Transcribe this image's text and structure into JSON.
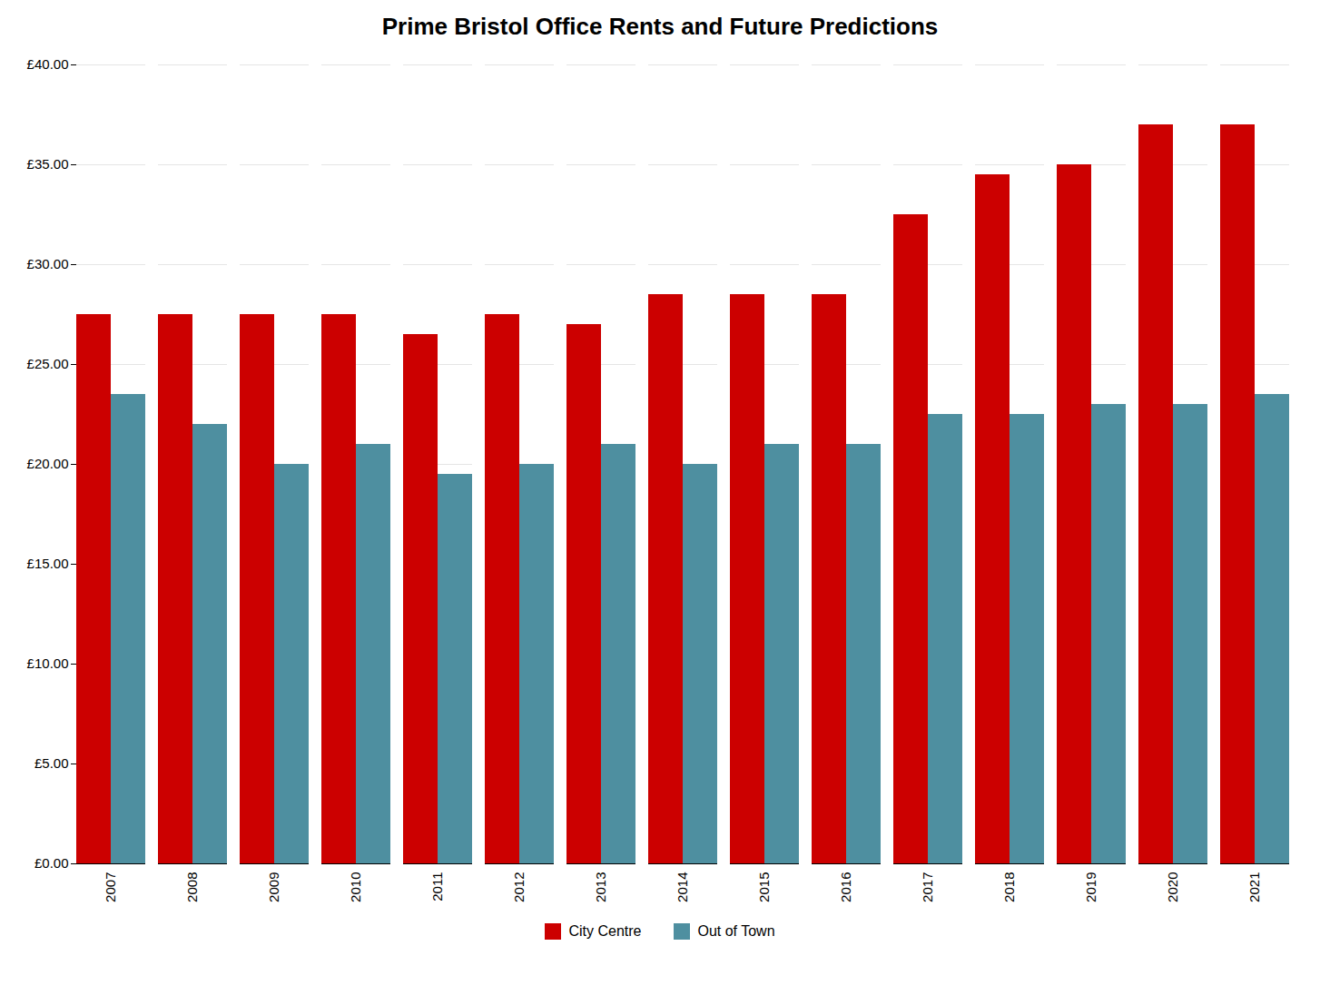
{
  "chart_data": {
    "type": "bar",
    "title": "Prime Bristol Office Rents and Future Predictions",
    "categories": [
      "2007",
      "2008",
      "2009",
      "2010",
      "2011",
      "2012",
      "2013",
      "2014",
      "2015",
      "2016",
      "2017",
      "2018",
      "2019",
      "2020",
      "2021"
    ],
    "series": [
      {
        "name": "City Centre",
        "color": "#CC0000",
        "values": [
          27.5,
          27.5,
          27.5,
          27.5,
          26.5,
          27.5,
          27.0,
          28.5,
          28.5,
          28.5,
          32.5,
          34.5,
          35.0,
          37.0,
          37.0
        ]
      },
      {
        "name": "Out of Town",
        "color": "#4E8FA0",
        "values": [
          23.5,
          22.0,
          20.0,
          21.0,
          19.5,
          20.0,
          21.0,
          20.0,
          21.0,
          21.0,
          22.5,
          22.5,
          23.0,
          23.0,
          23.5
        ]
      }
    ],
    "ylim": [
      0,
      40
    ],
    "yticks": [
      {
        "value": 0,
        "label": "£0.00"
      },
      {
        "value": 5,
        "label": "£5.00"
      },
      {
        "value": 10,
        "label": "£10.00"
      },
      {
        "value": 15,
        "label": "£15.00"
      },
      {
        "value": 20,
        "label": "£20.00"
      },
      {
        "value": 25,
        "label": "£25.00"
      },
      {
        "value": 30,
        "label": "£30.00"
      },
      {
        "value": 35,
        "label": "£35.00"
      },
      {
        "value": 40,
        "label": "£40.00"
      }
    ],
    "grid": true,
    "legend": "bottom"
  }
}
